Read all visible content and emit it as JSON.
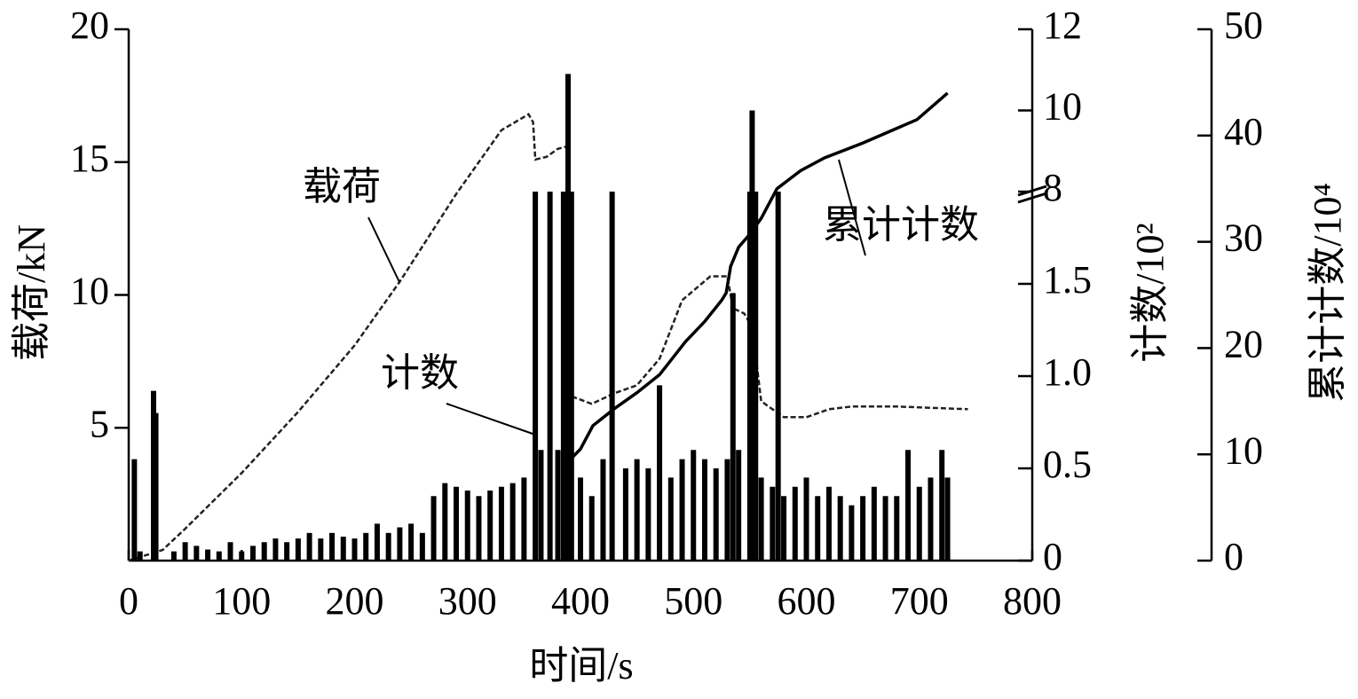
{
  "chart_data": {
    "type": "multi-axis",
    "x_label": "时间/s",
    "y_label": "载荷/kN",
    "y2_label": "计数/10²",
    "y3_label": "累计计数/10⁴",
    "xlim": [
      0,
      800
    ],
    "xticks": [
      0,
      100,
      200,
      300,
      400,
      500,
      600,
      700,
      800
    ],
    "ylim": [
      0,
      20
    ],
    "yticks": [
      5,
      10,
      15,
      20
    ],
    "y2lim": [
      0,
      12
    ],
    "y2break": [
      2,
      8
    ],
    "y2ticks": [
      0,
      0.5,
      {
        "value": 1,
        "label": "1.0"
      },
      1.5,
      8,
      10,
      12
    ],
    "y3lim": [
      0,
      50
    ],
    "y3ticks": [
      0,
      10,
      20,
      30,
      40,
      50
    ],
    "series": [
      {
        "name": "载荷",
        "kind": "line",
        "style": "dashed",
        "color": "#222",
        "axis": "y",
        "x": [
          0,
          30,
          50,
          100,
          150,
          200,
          240,
          290,
          330,
          350,
          354,
          358,
          360,
          370,
          380,
          389,
          391,
          410,
          430,
          450,
          470,
          490,
          515,
          530,
          535,
          545,
          552,
          560,
          580,
          600,
          620,
          640,
          680,
          743
        ],
        "values": [
          0,
          0.4,
          1.2,
          3.3,
          5.6,
          8.1,
          10.5,
          13.8,
          16.2,
          16.7,
          16.8,
          16.5,
          15.1,
          15.2,
          15.5,
          15.6,
          6.2,
          5.9,
          6.3,
          6.6,
          7.6,
          9.8,
          10.7,
          10.7,
          9.5,
          9.3,
          8.8,
          6.0,
          5.4,
          5.4,
          5.7,
          5.8,
          5.8,
          5.7
        ]
      },
      {
        "name": "计数",
        "kind": "bars",
        "color": "#000",
        "axis": "y2",
        "x": [
          5,
          10,
          22,
          24,
          40,
          50,
          60,
          70,
          80,
          90,
          100,
          110,
          120,
          130,
          140,
          150,
          160,
          170,
          180,
          190,
          200,
          210,
          220,
          230,
          240,
          250,
          260,
          270,
          280,
          290,
          300,
          310,
          320,
          330,
          340,
          350,
          360,
          365,
          373,
          380,
          385,
          389,
          392,
          400,
          410,
          420,
          428,
          440,
          450,
          460,
          470,
          480,
          490,
          500,
          510,
          520,
          530,
          535,
          540,
          550,
          552,
          555,
          560,
          570,
          575,
          580,
          590,
          600,
          610,
          620,
          630,
          640,
          650,
          660,
          670,
          680,
          690,
          700,
          710,
          720,
          725
        ],
        "values": [
          0.55,
          0.05,
          0.92,
          0.8,
          0.05,
          0.1,
          0.08,
          0.06,
          0.05,
          0.1,
          0.05,
          0.08,
          0.1,
          0.12,
          0.1,
          0.12,
          0.15,
          0.12,
          0.15,
          0.13,
          0.12,
          0.15,
          0.2,
          0.15,
          0.18,
          0.2,
          0.15,
          0.35,
          0.42,
          0.4,
          0.38,
          0.35,
          0.38,
          0.4,
          0.42,
          0.45,
          8,
          0.6,
          8,
          0.6,
          8,
          10.9,
          8,
          0.45,
          0.35,
          0.55,
          8,
          0.5,
          0.55,
          0.5,
          0.95,
          0.45,
          0.55,
          0.6,
          0.55,
          0.5,
          0.55,
          1.45,
          0.6,
          8,
          10,
          8,
          0.45,
          0.4,
          8,
          0.35,
          0.4,
          0.45,
          0.35,
          0.4,
          0.35,
          0.3,
          0.35,
          0.4,
          0.35,
          0.35,
          0.6,
          0.4,
          0.45,
          0.6,
          0.45
        ]
      },
      {
        "name": "累计计数",
        "kind": "line",
        "style": "solid",
        "color": "#000",
        "axis": "y3",
        "x": [
          389,
          400,
          411,
          430,
          450,
          470,
          493,
          510,
          525,
          529,
          533,
          540,
          549,
          560,
          574,
          595,
          616,
          650,
          698,
          725
        ],
        "values": [
          9.3,
          10.5,
          12.7,
          14.3,
          15.8,
          17.5,
          20.6,
          22.5,
          24.5,
          25.2,
          27.7,
          29.5,
          30.6,
          32.2,
          35,
          36.7,
          37.9,
          39.3,
          41.5,
          44
        ]
      }
    ]
  }
}
